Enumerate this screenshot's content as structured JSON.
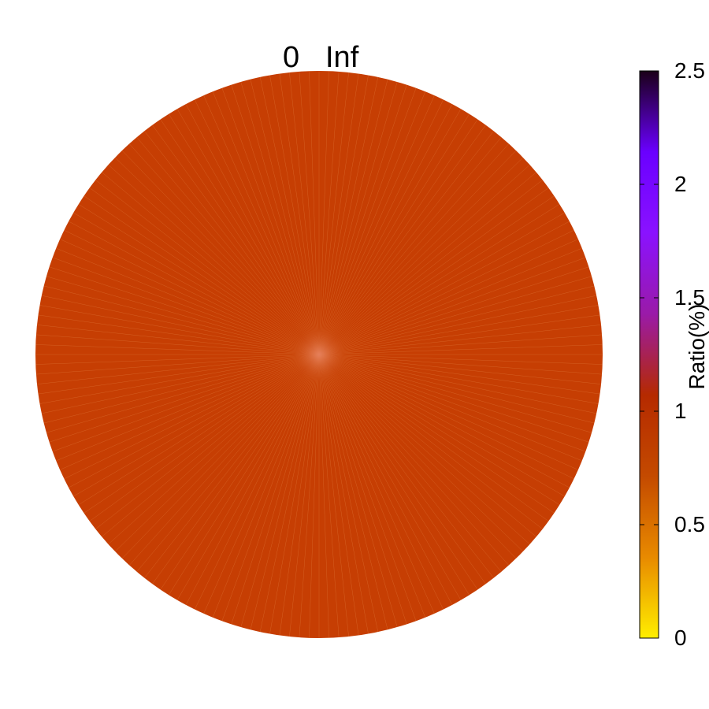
{
  "chart_data": {
    "type": "heatmap",
    "subtype": "polar",
    "angle_labels": [
      "0",
      "Inf"
    ],
    "colorbar": {
      "label": "Ratio(%)",
      "min": 0,
      "max": 2.5,
      "ticks": [
        "0",
        "0.5",
        "1",
        "1.5",
        "2",
        "2.5"
      ],
      "tick_values": [
        0,
        0.5,
        1,
        1.5,
        2,
        2.5
      ],
      "palette": [
        "#ffee00",
        "#e88a00",
        "#c44a00",
        "#b52a00",
        "#9a1aa8",
        "#8a12ff",
        "#6a00ff",
        "#1a0018"
      ]
    },
    "field": {
      "value": 1.0,
      "color": "#c63e03",
      "center_color": "#e0694a",
      "spoke_count": 180
    }
  }
}
